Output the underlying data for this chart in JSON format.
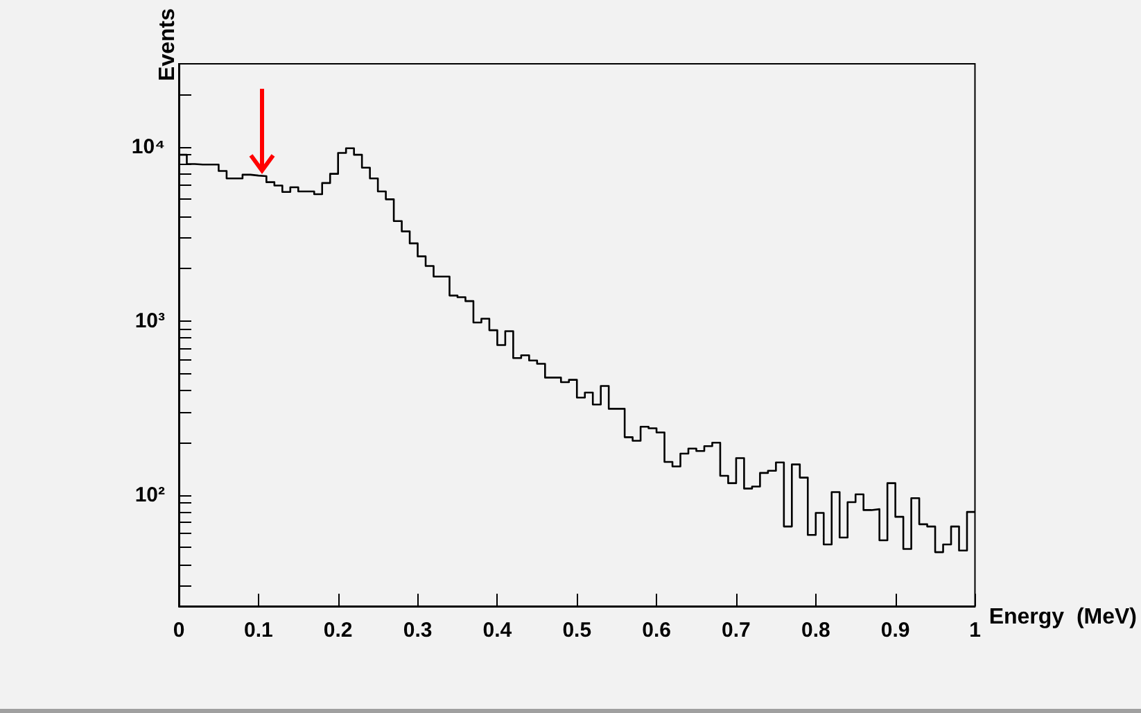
{
  "chart_data": {
    "type": "histogram",
    "xlabel": "Energy  (MeV)",
    "ylabel": "Events",
    "color": "#000000",
    "log": "y",
    "grid": false,
    "bins": [
      0,
      0.01,
      0.02,
      0.03,
      0.04,
      0.05,
      0.06,
      0.07,
      0.08,
      0.09,
      0.1,
      0.11,
      0.12,
      0.13,
      0.14,
      0.15,
      0.16,
      0.17,
      0.18,
      0.19,
      0.2,
      0.21,
      0.22,
      0.23,
      0.24,
      0.25,
      0.26,
      0.27,
      0.28,
      0.29,
      0.3,
      0.31,
      0.32,
      0.33,
      0.34,
      0.35,
      0.36,
      0.37,
      0.38,
      0.39,
      0.4,
      0.41,
      0.42,
      0.43,
      0.44,
      0.45,
      0.46,
      0.47,
      0.48,
      0.49,
      0.5,
      0.51,
      0.52,
      0.53,
      0.54,
      0.55,
      0.56,
      0.57,
      0.58,
      0.59,
      0.6,
      0.61,
      0.62,
      0.63,
      0.64,
      0.65,
      0.66,
      0.67,
      0.68,
      0.69,
      0.7,
      0.71,
      0.72,
      0.73,
      0.74,
      0.75,
      0.76,
      0.77,
      0.78,
      0.79,
      0.8,
      0.81,
      0.82,
      0.83,
      0.84,
      0.85,
      0.86,
      0.87,
      0.88,
      0.89,
      0.9,
      0.91,
      0.92,
      0.93,
      0.94,
      0.95,
      0.96,
      0.97,
      0.98,
      0.99,
      1
    ],
    "values": [
      9010,
      7970,
      7920,
      7920,
      7920,
      7270,
      6590,
      6590,
      6920,
      6840,
      6790,
      6270,
      6000,
      5510,
      5860,
      5550,
      5550,
      5350,
      6200,
      7000,
      9230,
      9820,
      9010,
      7590,
      6590,
      5550,
      5000,
      3750,
      3270,
      2790,
      2350,
      2070,
      1800,
      1800,
      1400,
      1370,
      1300,
      980,
      1030,
      885,
      727,
      874,
      612,
      635,
      593,
      568,
      473,
      473,
      445,
      459,
      363,
      388,
      331,
      423,
      313,
      313,
      215,
      205,
      247,
      242,
      229,
      155,
      146,
      173,
      185,
      179,
      191,
      200,
      129,
      117,
      163,
      109,
      112,
      134,
      138,
      154,
      66,
      150,
      126,
      59,
      79,
      52,
      104,
      57,
      91,
      101,
      82,
      83,
      55,
      117,
      75,
      49,
      96,
      68,
      66,
      47,
      52,
      66,
      48,
      80
    ],
    "xlim": [
      0,
      1
    ],
    "ylim": [
      23,
      30000
    ],
    "xticks": [
      0,
      0.1,
      0.2,
      0.3,
      0.4,
      0.5,
      0.6,
      0.7,
      0.8,
      0.9,
      1
    ],
    "yticks": [
      {
        "value": 30,
        "label": null
      },
      {
        "value": 40,
        "label": null
      },
      {
        "value": 50,
        "label": null
      },
      {
        "value": 60,
        "label": null
      },
      {
        "value": 70,
        "label": null
      },
      {
        "value": 80,
        "label": null
      },
      {
        "value": 90,
        "label": null
      },
      {
        "value": 100,
        "label": "10²"
      },
      {
        "value": 200,
        "label": null
      },
      {
        "value": 300,
        "label": null
      },
      {
        "value": 400,
        "label": null
      },
      {
        "value": 500,
        "label": null
      },
      {
        "value": 600,
        "label": null
      },
      {
        "value": 700,
        "label": null
      },
      {
        "value": 800,
        "label": null
      },
      {
        "value": 900,
        "label": null
      },
      {
        "value": 1000,
        "label": "10³"
      },
      {
        "value": 2000,
        "label": null
      },
      {
        "value": 3000,
        "label": null
      },
      {
        "value": 4000,
        "label": null
      },
      {
        "value": 5000,
        "label": null
      },
      {
        "value": 6000,
        "label": null
      },
      {
        "value": 7000,
        "label": null
      },
      {
        "value": 8000,
        "label": null
      },
      {
        "value": 9000,
        "label": null
      },
      {
        "value": 10000,
        "label": "10⁴"
      },
      {
        "value": 20000,
        "label": null
      }
    ]
  }
}
